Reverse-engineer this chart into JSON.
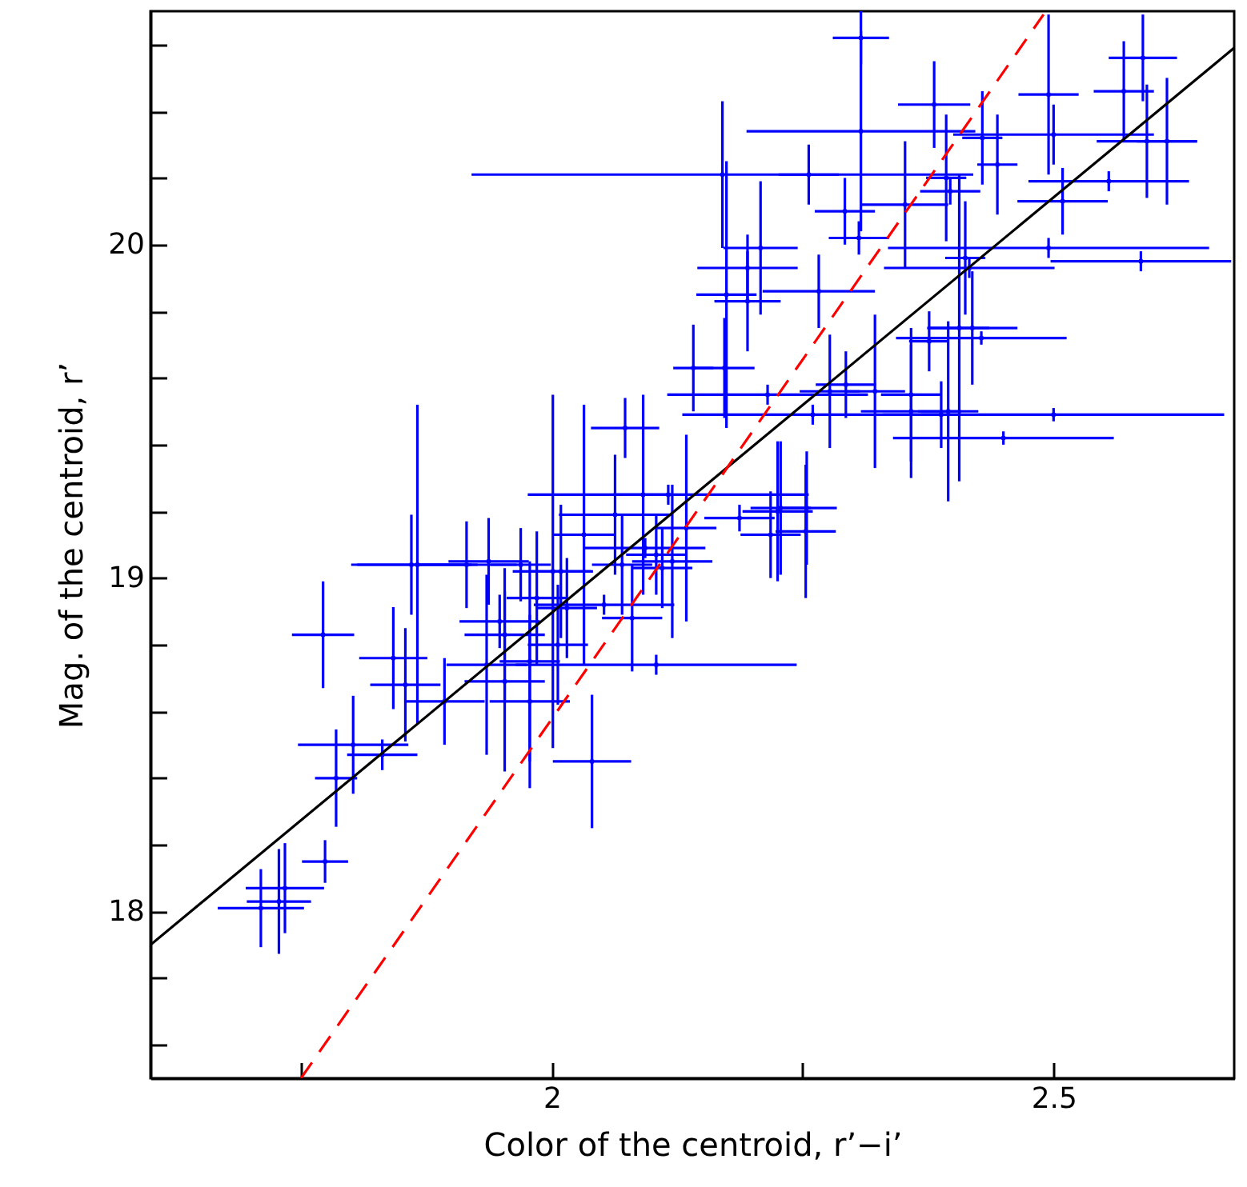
{
  "chart_data": {
    "type": "scatter",
    "xlabel": "Color of the centroid, r’−i’",
    "ylabel": "Mag. of the centroid, r’",
    "xlim": [
      1.6,
      2.68
    ],
    "ylim": [
      17.5,
      20.7
    ],
    "xticks": [
      {
        "value": 1.75,
        "label": null
      },
      2,
      {
        "value": 2.25,
        "label": null
      },
      2.5
    ],
    "yticks": [
      {
        "value": 17.6,
        "label": null
      },
      {
        "value": 17.8,
        "label": null
      },
      18,
      {
        "value": 18.2,
        "label": null
      },
      {
        "value": 18.4,
        "label": null
      },
      {
        "value": 18.6,
        "label": null
      },
      {
        "value": 18.8,
        "label": null
      },
      19,
      {
        "value": 19.2,
        "label": null
      },
      {
        "value": 19.4,
        "label": null
      },
      {
        "value": 19.6,
        "label": null
      },
      {
        "value": 19.8,
        "label": null
      },
      20,
      {
        "value": 20.2,
        "label": null
      },
      {
        "value": 20.4,
        "label": null
      },
      {
        "value": 20.6,
        "label": null
      }
    ],
    "grid": false,
    "series": [
      {
        "color": "#0000ff",
        "x": [
          1.772,
          1.71,
          1.728,
          1.734,
          1.774,
          1.785,
          1.831,
          1.802,
          1.842,
          1.854,
          1.866,
          1.86,
          1.893,
          1.915,
          1.937,
          1.935,
          1.953,
          1.978,
          1.969,
          1.948,
          2.073,
          2.141,
          2.001,
          2.063,
          2.091,
          2.104,
          2.134,
          2.12,
          2.032,
          2.009,
          1.953,
          1.978,
          2.04,
          2.104,
          2.225,
          2.253,
          2.187,
          2.218,
          2.172,
          2.308,
          2.381,
          2.308,
          2.17,
          2.256,
          2.352,
          2.208,
          2.195,
          2.266,
          2.292,
          2.306,
          2.393,
          2.397,
          2.429,
          2.444,
          2.412,
          2.416,
          2.589,
          2.57,
          2.593,
          2.613,
          2.5,
          2.509,
          2.495,
          2.555,
          2.495,
          2.587,
          2.358,
          2.395,
          2.5,
          2.406,
          2.419,
          2.376,
          2.388,
          2.45,
          2.428,
          2.195,
          2.174,
          2.322,
          2.358,
          2.228,
          2.254,
          2.293,
          2.277,
          2.26,
          2.215,
          2.116,
          1.985,
          2.015,
          2.052,
          2.006,
          2.07,
          2.11,
          2.08,
          2.093
        ],
        "values": [
          18.83,
          18.01,
          18.03,
          18.07,
          18.15,
          18.4,
          18.47,
          18.5,
          18.76,
          18.68,
          19.04,
          19.04,
          18.63,
          19.04,
          19.05,
          18.74,
          18.69,
          18.63,
          19.04,
          18.87,
          19.45,
          19.63,
          19.02,
          19.19,
          19.25,
          19.07,
          19.15,
          19.05,
          19.13,
          19.02,
          18.83,
          18.75,
          18.45,
          18.74,
          19.2,
          19.14,
          19.18,
          19.13,
          19.63,
          20.62,
          20.42,
          20.34,
          20.21,
          20.21,
          20.12,
          19.99,
          19.93,
          19.86,
          20.1,
          20.02,
          20.2,
          20.16,
          20.32,
          20.24,
          19.96,
          19.93,
          20.56,
          20.46,
          20.31,
          20.31,
          20.33,
          20.13,
          20.45,
          20.19,
          19.99,
          19.95,
          19.5,
          19.5,
          19.49,
          19.75,
          19.75,
          19.71,
          19.49,
          19.42,
          19.72,
          19.83,
          19.85,
          19.56,
          19.55,
          19.21,
          19.21,
          19.58,
          19.56,
          19.49,
          19.55,
          19.25,
          18.94,
          18.91,
          18.92,
          18.8,
          19.04,
          19.03,
          18.88,
          19.09
        ],
        "xerrors": [
          0.031,
          0.043,
          0.032,
          0.039,
          0.023,
          0.021,
          0.035,
          0.055,
          0.034,
          0.035,
          0.06,
          0.06,
          0.04,
          0.05,
          0.04,
          0.04,
          0.04,
          0.04,
          0.03,
          0.04,
          0.034,
          0.02,
          0.04,
          0.056,
          0.03,
          0.03,
          0.03,
          0.04,
          0.03,
          0.03,
          0.04,
          0.03,
          0.039,
          0.14,
          0.035,
          0.03,
          0.035,
          0.03,
          0.03,
          0.028,
          0.036,
          0.114,
          0.25,
          0.03,
          0.043,
          0.037,
          0.05,
          0.056,
          0.03,
          0.03,
          0.02,
          0.03,
          0.02,
          0.02,
          0.02,
          0.085,
          0.034,
          0.03,
          0.05,
          0.03,
          0.1,
          0.045,
          0.03,
          0.08,
          0.16,
          0.09,
          0.05,
          0.03,
          0.17,
          0.03,
          0.045,
          0.02,
          0.02,
          0.11,
          0.085,
          0.033,
          0.03,
          0.03,
          0.03,
          0.03,
          0.03,
          0.03,
          0.03,
          0.13,
          0.1,
          0.14,
          0.03,
          0.03,
          0.07,
          0.03,
          0.03,
          0.03,
          0.03,
          0.06
        ],
        "errors": [
          0.16,
          0.117,
          0.157,
          0.135,
          0.064,
          0.146,
          0.046,
          0.147,
          0.153,
          0.17,
          0.48,
          0.15,
          0.13,
          0.13,
          0.13,
          0.27,
          0.27,
          0.26,
          0.11,
          0.08,
          0.09,
          0.13,
          0.53,
          0.18,
          0.3,
          0.12,
          0.28,
          0.23,
          0.39,
          0.2,
          0.2,
          0.3,
          0.2,
          0.03,
          0.21,
          0.2,
          0.04,
          0.13,
          0.15,
          0.08,
          0.13,
          0.3,
          0.22,
          0.09,
          0.19,
          0.2,
          0.1,
          0.11,
          0.1,
          0.05,
          0.19,
          0.04,
          0.14,
          0.15,
          0.17,
          0.03,
          0.13,
          0.15,
          0.17,
          0.19,
          0.09,
          0.1,
          0.24,
          0.03,
          0.03,
          0.03,
          0.2,
          0.27,
          0.02,
          0.46,
          0.17,
          0.09,
          0.1,
          0.02,
          0.02,
          0.15,
          0.4,
          0.23,
          0.2,
          0.2,
          0.17,
          0.1,
          0.17,
          0.03,
          0.03,
          0.03,
          0.2,
          0.15,
          0.03,
          0.18,
          0.15,
          0.12,
          0.16,
          0.03
        ]
      },
      {
        "type": "line",
        "color": "#000000",
        "line_style": "solid",
        "x": [
          1.6,
          2.68
        ],
        "values": [
          17.9,
          20.59
        ]
      },
      {
        "type": "line",
        "color": "#ff0000",
        "line_style": "dashed",
        "x": [
          1.75,
          2.49
        ],
        "values": [
          17.5,
          20.69
        ]
      }
    ]
  }
}
